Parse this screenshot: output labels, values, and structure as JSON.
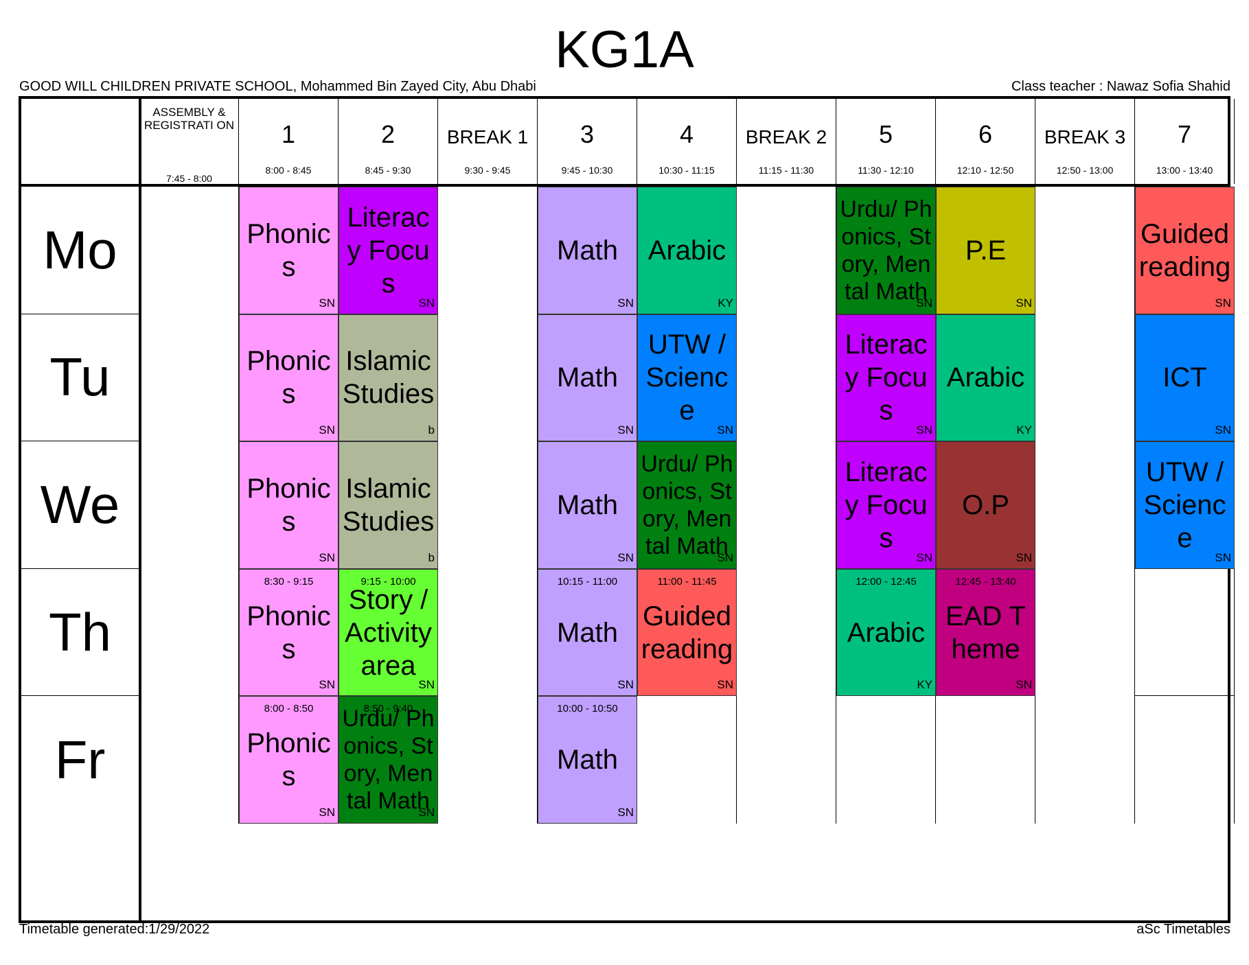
{
  "header": {
    "title": "KG1A",
    "school": "GOOD WILL CHILDREN PRIVATE SCHOOL, Mohammed Bin Zayed City, Abu Dhabi",
    "class_teacher": "Class teacher : Nawaz Sofia Shahid"
  },
  "columns": [
    {
      "label": "ASSEMBLY & REGISTRATI ON",
      "time": "7:45 - 8:00",
      "type": "assembly"
    },
    {
      "label": "1",
      "time": "8:00 - 8:45",
      "type": "period"
    },
    {
      "label": "2",
      "time": "8:45 - 9:30",
      "type": "period"
    },
    {
      "label": "BREAK 1",
      "time": "9:30 - 9:45",
      "type": "break"
    },
    {
      "label": "3",
      "time": "9:45 - 10:30",
      "type": "period"
    },
    {
      "label": "4",
      "time": "10:30 - 11:15",
      "type": "period"
    },
    {
      "label": "BREAK 2",
      "time": "11:15 - 11:30",
      "type": "break"
    },
    {
      "label": "5",
      "time": "11:30 - 12:10",
      "type": "period"
    },
    {
      "label": "6",
      "time": "12:10 - 12:50",
      "type": "period"
    },
    {
      "label": "BREAK 3",
      "time": "12:50 - 13:00",
      "type": "break"
    },
    {
      "label": "7",
      "time": "13:00 - 13:40",
      "type": "period"
    }
  ],
  "days": [
    {
      "label": "Mo",
      "lessons": [
        {
          "col": 1,
          "subject": "Phonics",
          "teacher": "SN",
          "color": "#FF99FF"
        },
        {
          "col": 2,
          "subject": "Literacy Focus",
          "teacher": "SN",
          "color": "#C000FF"
        },
        {
          "col": 4,
          "subject": "Math",
          "teacher": "SN",
          "color": "#C0A0FF"
        },
        {
          "col": 5,
          "subject": "Arabic",
          "teacher": "KY",
          "color": "#00C080"
        },
        {
          "col": 7,
          "subject": "Urdu/ Phonics, Story, Mental Math",
          "teacher": "SN",
          "color": "#008010",
          "small": true
        },
        {
          "col": 8,
          "subject": "P.E",
          "teacher": "SN",
          "color": "#C0C000"
        },
        {
          "col": 10,
          "subject": "Guided reading",
          "teacher": "SN",
          "color": "#FF5A5A"
        }
      ]
    },
    {
      "label": "Tu",
      "lessons": [
        {
          "col": 1,
          "subject": "Phonics",
          "teacher": "SN",
          "color": "#FF99FF"
        },
        {
          "col": 2,
          "subject": "Islamic Studies",
          "teacher": "b",
          "color": "#B0B89A"
        },
        {
          "col": 4,
          "subject": "Math",
          "teacher": "SN",
          "color": "#C0A0FF"
        },
        {
          "col": 5,
          "subject": "UTW / Science",
          "teacher": "SN",
          "color": "#0080FF"
        },
        {
          "col": 7,
          "subject": "Literacy Focus",
          "teacher": "SN",
          "color": "#C000FF"
        },
        {
          "col": 8,
          "subject": "Arabic",
          "teacher": "KY",
          "color": "#00C080"
        },
        {
          "col": 10,
          "subject": "ICT",
          "teacher": "SN",
          "color": "#0080FF"
        }
      ]
    },
    {
      "label": "We",
      "lessons": [
        {
          "col": 1,
          "subject": "Phonics",
          "teacher": "SN",
          "color": "#FF99FF"
        },
        {
          "col": 2,
          "subject": "Islamic Studies",
          "teacher": "b",
          "color": "#B0B89A"
        },
        {
          "col": 4,
          "subject": "Math",
          "teacher": "SN",
          "color": "#C0A0FF"
        },
        {
          "col": 5,
          "subject": "Urdu/ Phonics, Story, Mental Math",
          "teacher": "SN",
          "color": "#008010",
          "small": true
        },
        {
          "col": 7,
          "subject": "Literacy Focus",
          "teacher": "SN",
          "color": "#C000FF"
        },
        {
          "col": 8,
          "subject": "O.P",
          "teacher": "SN",
          "color": "#993333"
        },
        {
          "col": 10,
          "subject": "UTW / Science",
          "teacher": "SN",
          "color": "#0080FF"
        }
      ]
    },
    {
      "label": "Th",
      "lessons": [
        {
          "col": 1,
          "subject": "Phonics",
          "teacher": "SN",
          "color": "#FF99FF",
          "time": "8:30 - 9:15"
        },
        {
          "col": 2,
          "subject": "Story / Activity area",
          "teacher": "SN",
          "color": "#66FF33",
          "time": "9:15 - 10:00"
        },
        {
          "col": 4,
          "subject": "Math",
          "teacher": "SN",
          "color": "#C0A0FF",
          "time": "10:15 - 11:00"
        },
        {
          "col": 5,
          "subject": "Guided reading",
          "teacher": "SN",
          "color": "#FF5A5A",
          "time": "11:00 - 11:45"
        },
        {
          "col": 7,
          "subject": "Arabic",
          "teacher": "KY",
          "color": "#00C080",
          "time": "12:00 - 12:45"
        },
        {
          "col": 8,
          "subject": "EAD Theme",
          "teacher": "SN",
          "color": "#C0007F",
          "time": "12:45 - 13:40"
        }
      ]
    },
    {
      "label": "Fr",
      "lessons": [
        {
          "col": 1,
          "subject": "Phonics",
          "teacher": "SN",
          "color": "#FF99FF",
          "time": "8:00 - 8:50"
        },
        {
          "col": 2,
          "subject": "Urdu/ Phonics, Story, Mental Math",
          "teacher": "SN",
          "color": "#008010",
          "time": "8:50 - 9:40",
          "small": true
        },
        {
          "col": 4,
          "subject": "Math",
          "teacher": "SN",
          "color": "#C0A0FF",
          "time": "10:00 - 10:50"
        }
      ]
    }
  ],
  "footer": {
    "generated": "Timetable generated:1/29/2022",
    "brand": "aSc Timetables"
  }
}
